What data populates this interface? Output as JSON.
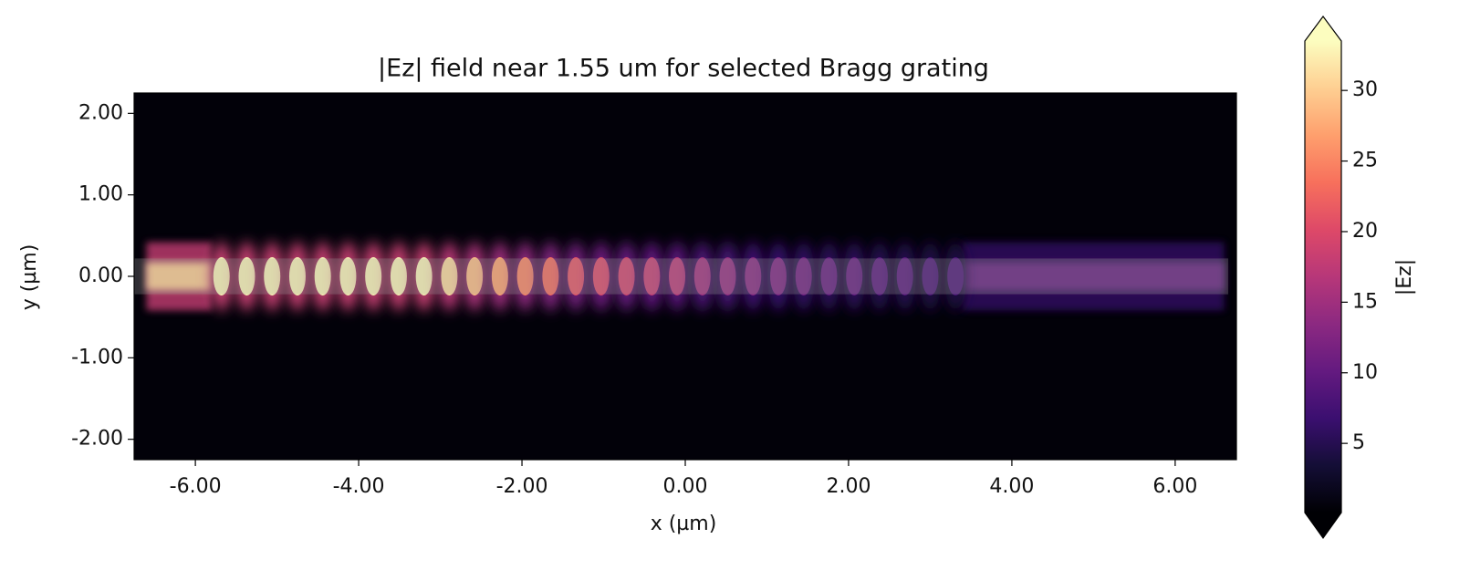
{
  "chart_data": {
    "type": "heatmap",
    "title": "|Ez| field near 1.55 um for selected Bragg grating",
    "x_label": "x (µm)",
    "y_label": "y (µm)",
    "xlim": [
      -6.75,
      6.75
    ],
    "ylim": [
      -2.25,
      2.25
    ],
    "xticks": [
      {
        "value": -6,
        "label": "-6.00"
      },
      {
        "value": -4,
        "label": "-4.00"
      },
      {
        "value": -2,
        "label": "-2.00"
      },
      {
        "value": 0,
        "label": "0.00"
      },
      {
        "value": 2,
        "label": "2.00"
      },
      {
        "value": 4,
        "label": "4.00"
      },
      {
        "value": 6,
        "label": "6.00"
      }
    ],
    "yticks": [
      {
        "value": -2,
        "label": "-2.00"
      },
      {
        "value": -1,
        "label": "-1.00"
      },
      {
        "value": 0,
        "label": "0.00"
      },
      {
        "value": 1,
        "label": "1.00"
      },
      {
        "value": 2,
        "label": "2.00"
      }
    ],
    "colorbar": {
      "label": "|Ez|",
      "clim": [
        0.1,
        33.5
      ],
      "ticks": [
        5,
        10,
        15,
        20,
        25,
        30
      ],
      "colormap": "magma",
      "extend": "both"
    },
    "lobes": {
      "x": [
        -5.68,
        -5.37,
        -5.06,
        -4.75,
        -4.44,
        -4.13,
        -3.82,
        -3.51,
        -3.2,
        -2.89,
        -2.58,
        -2.27,
        -1.96,
        -1.65,
        -1.34,
        -1.03,
        -0.72,
        -0.41,
        -0.1,
        0.21,
        0.52,
        0.83,
        1.14,
        1.45,
        1.76,
        2.07,
        2.38,
        2.69,
        3.0,
        3.31
      ],
      "values": [
        33,
        33,
        33,
        33,
        33,
        33,
        33,
        33,
        33,
        31,
        29,
        27,
        25,
        23,
        21,
        20,
        19,
        18,
        17,
        15,
        14,
        13,
        12,
        11,
        10,
        10,
        9,
        9,
        8,
        8
      ]
    },
    "bands": [
      {
        "xlim": [
          -6.6,
          -5.8
        ],
        "value": 30
      },
      {
        "xlim": [
          3.4,
          6.6
        ],
        "value": 10
      }
    ],
    "waveguide": {
      "xlim": [
        -6.75,
        6.65
      ],
      "ylim": [
        -0.22,
        0.22
      ]
    }
  }
}
